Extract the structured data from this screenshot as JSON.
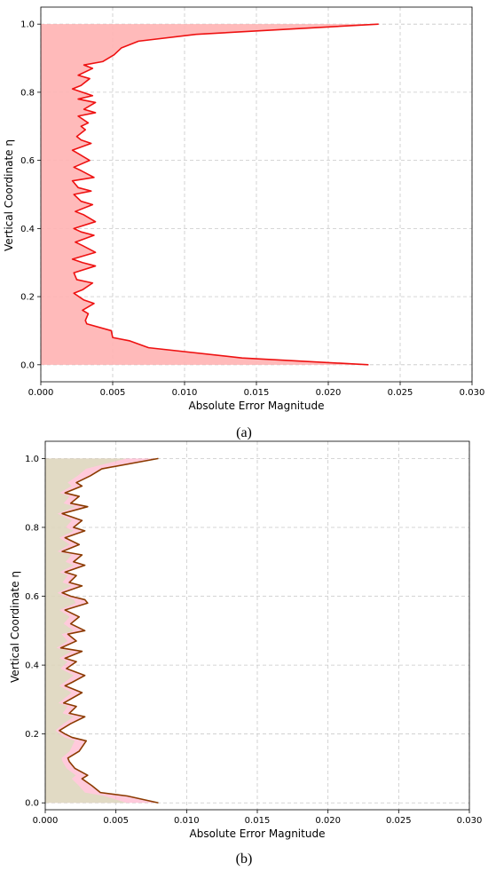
{
  "chart_data": [
    {
      "type": "area",
      "panel_label": "(a)",
      "xlabel": "Absolute Error Magnitude",
      "ylabel": "Vertical Coordinate η",
      "xlim": [
        0.0,
        0.03
      ],
      "ylim": [
        -0.05,
        1.05
      ],
      "xticks": [
        0.0,
        0.005,
        0.01,
        0.015,
        0.02,
        0.025,
        0.03
      ],
      "xtick_labels": [
        "0.000",
        "0.005",
        "0.010",
        "0.015",
        "0.020",
        "0.025",
        "0.030"
      ],
      "yticks": [
        0.0,
        0.2,
        0.4,
        0.6,
        0.8,
        1.0
      ],
      "ytick_labels": [
        "0.0",
        "0.2",
        "0.4",
        "0.6",
        "0.8",
        "1.0"
      ],
      "grid": true,
      "line_color": "#ee1111",
      "fill_color": "#ffb3b3",
      "series": [
        {
          "x": [
            0.0228,
            0.014,
            0.0075,
            0.0062,
            0.005,
            0.0049,
            0.0032,
            0.0031,
            0.0033,
            0.0029,
            0.0037,
            0.003,
            0.0023,
            0.0029,
            0.0036,
            0.0025,
            0.0023,
            0.0038,
            0.0029,
            0.0022,
            0.0038,
            0.0029,
            0.0024,
            0.0037,
            0.0028,
            0.0023,
            0.0038,
            0.003,
            0.0024,
            0.0036,
            0.0028,
            0.0023,
            0.0035,
            0.0026,
            0.0022,
            0.0037,
            0.0028,
            0.0023,
            0.0034,
            0.0026,
            0.0022,
            0.0035,
            0.0028,
            0.0025,
            0.0031,
            0.0028,
            0.0033,
            0.0026,
            0.0038,
            0.003,
            0.0038,
            0.0026,
            0.0036,
            0.0022,
            0.0028,
            0.0034,
            0.0026,
            0.0036,
            0.003,
            0.0043,
            0.0047,
            0.0051,
            0.0056,
            0.0068,
            0.0108,
            0.0235
          ],
          "y": [
            0.0,
            0.02,
            0.05,
            0.07,
            0.08,
            0.1,
            0.12,
            0.13,
            0.15,
            0.16,
            0.18,
            0.19,
            0.21,
            0.22,
            0.24,
            0.25,
            0.27,
            0.29,
            0.3,
            0.31,
            0.33,
            0.35,
            0.36,
            0.38,
            0.39,
            0.4,
            0.42,
            0.44,
            0.45,
            0.47,
            0.48,
            0.5,
            0.51,
            0.52,
            0.54,
            0.55,
            0.57,
            0.58,
            0.6,
            0.62,
            0.63,
            0.65,
            0.66,
            0.67,
            0.69,
            0.7,
            0.71,
            0.73,
            0.74,
            0.75,
            0.77,
            0.78,
            0.79,
            0.81,
            0.82,
            0.84,
            0.85,
            0.87,
            0.88,
            0.89,
            0.9,
            0.91,
            0.93,
            0.95,
            0.97,
            1.0
          ]
        }
      ]
    },
    {
      "type": "area",
      "panel_label": "(b)",
      "xlabel": "Absolute Error Magnitude",
      "ylabel": "Vertical Coordinate η",
      "xlim": [
        0.0,
        0.03
      ],
      "ylim": [
        -0.02,
        1.05
      ],
      "xticks": [
        0.0,
        0.005,
        0.01,
        0.015,
        0.02,
        0.025,
        0.03
      ],
      "xtick_labels": [
        "0.000",
        "0.005",
        "0.010",
        "0.015",
        "0.020",
        "0.025",
        "0.030"
      ],
      "yticks": [
        0.0,
        0.2,
        0.4,
        0.6,
        0.8,
        1.0
      ],
      "ytick_labels": [
        "0.0",
        "0.2",
        "0.4",
        "0.6",
        "0.8",
        "1.0"
      ],
      "grid": true,
      "line_color": "#8b3a00",
      "fill_color": "#ffb8cf",
      "fill_overlay_color": "#c9e7b0",
      "series": [
        {
          "x": [
            0.008,
            0.0058,
            0.0039,
            0.0033,
            0.0026,
            0.003,
            0.0021,
            0.0017,
            0.0016,
            0.0024,
            0.0029,
            0.0019,
            0.0014,
            0.001,
            0.0018,
            0.0028,
            0.0017,
            0.0022,
            0.0013,
            0.0026,
            0.0014,
            0.0019,
            0.0028,
            0.0015,
            0.0022,
            0.0014,
            0.0026,
            0.0011,
            0.0022,
            0.0016,
            0.0028,
            0.0018,
            0.0024,
            0.0014,
            0.003,
            0.0028,
            0.0018,
            0.0012,
            0.0026,
            0.0017,
            0.0022,
            0.0014,
            0.0028,
            0.002,
            0.0026,
            0.0012,
            0.0024,
            0.0014,
            0.0028,
            0.002,
            0.0026,
            0.0012,
            0.003,
            0.0018,
            0.0024,
            0.0014,
            0.0026,
            0.0022,
            0.0032,
            0.004,
            0.008
          ],
          "y": [
            0.0,
            0.02,
            0.03,
            0.05,
            0.07,
            0.08,
            0.1,
            0.12,
            0.13,
            0.15,
            0.18,
            0.19,
            0.2,
            0.21,
            0.23,
            0.25,
            0.26,
            0.28,
            0.29,
            0.32,
            0.34,
            0.35,
            0.37,
            0.39,
            0.41,
            0.42,
            0.44,
            0.45,
            0.47,
            0.49,
            0.5,
            0.52,
            0.54,
            0.56,
            0.58,
            0.59,
            0.6,
            0.61,
            0.63,
            0.64,
            0.66,
            0.67,
            0.69,
            0.7,
            0.72,
            0.73,
            0.75,
            0.77,
            0.79,
            0.8,
            0.82,
            0.84,
            0.86,
            0.87,
            0.89,
            0.9,
            0.92,
            0.93,
            0.95,
            0.97,
            1.0
          ]
        }
      ]
    }
  ]
}
